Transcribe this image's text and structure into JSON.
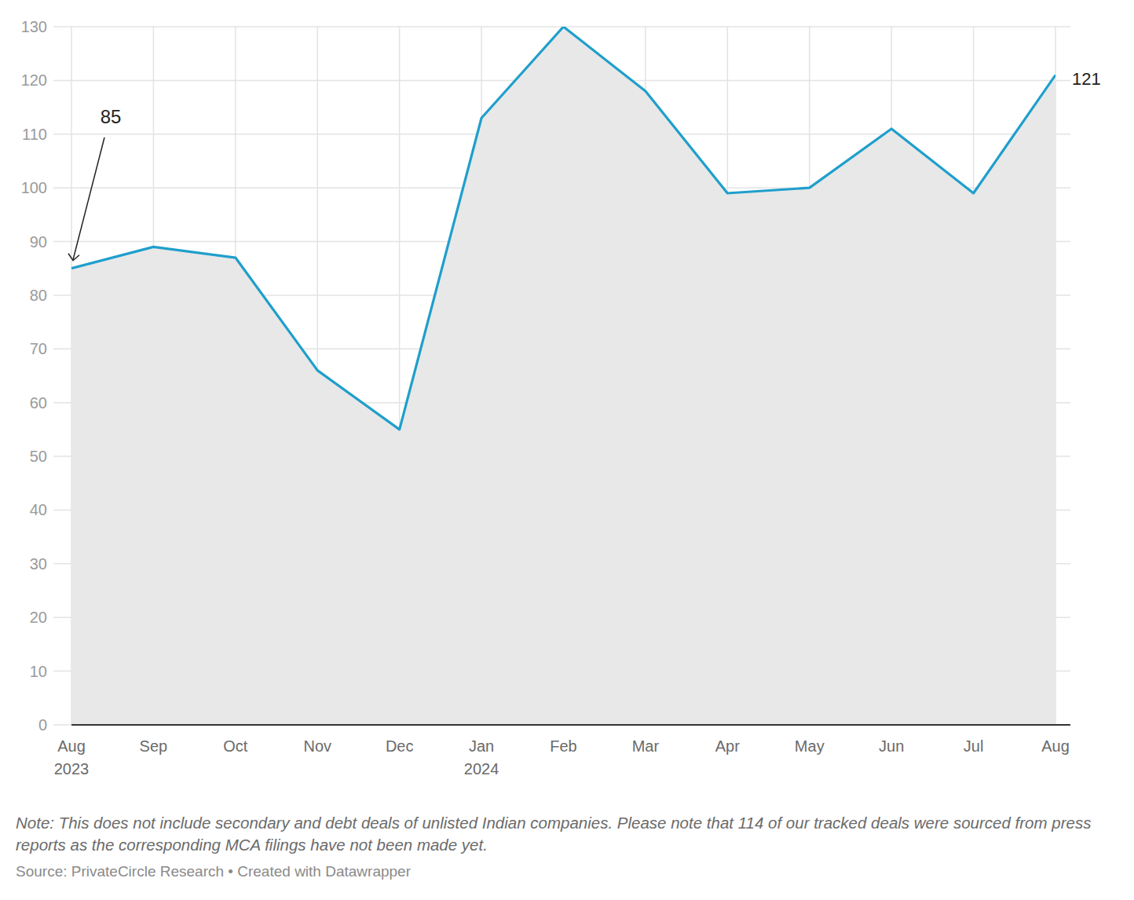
{
  "chart_data": {
    "type": "area",
    "categories": [
      "Aug 2023",
      "Sep",
      "Oct",
      "Nov",
      "Dec",
      "Jan 2024",
      "Feb",
      "Mar",
      "Apr",
      "May",
      "Jun",
      "Jul",
      "Aug"
    ],
    "values": [
      85,
      89,
      87,
      66,
      55,
      113,
      130,
      118,
      99,
      100,
      111,
      99,
      121
    ],
    "color": "#1f9fcc",
    "ylim": [
      0,
      130
    ],
    "yticks": [
      0,
      10,
      20,
      30,
      40,
      50,
      60,
      70,
      80,
      90,
      100,
      110,
      120,
      130
    ],
    "grid": true,
    "note": "Note: This does not include secondary and debt deals of unlisted Indian companies. Please note that 114 of our tracked deals were sourced from press reports as the corresponding MCA filings have not been made yet.",
    "source": "Source: PrivateCircle Research • Created with Datawrapper"
  }
}
